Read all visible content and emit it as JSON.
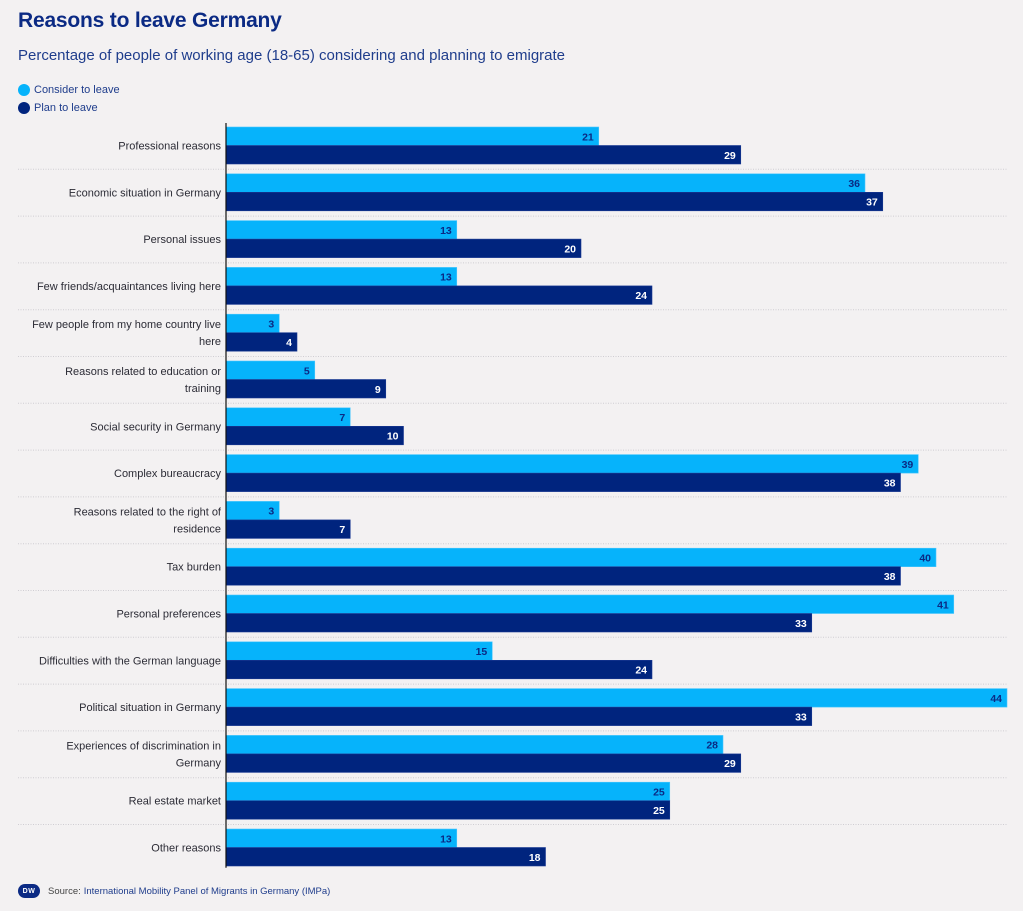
{
  "header": {
    "title": "Reasons to leave Germany",
    "subtitle": "Percentage of people of working age (18-65) considering and planning to emigrate"
  },
  "legend": [
    {
      "label": "Consider to leave",
      "color": "#06b3fb"
    },
    {
      "label": "Plan to leave",
      "color": "#00247e"
    }
  ],
  "footer": {
    "logo": "DW",
    "source_prefix": "Source:",
    "source_text": "International Mobility Panel of Migrants in Germany (IMPa)"
  },
  "chart_data": {
    "type": "bar",
    "orientation": "horizontal",
    "title": "Reasons to leave Germany",
    "subtitle": "Percentage of people of working age (18-65) considering and planning to emigrate",
    "xlabel": "",
    "ylabel": "",
    "xlim": [
      0,
      44
    ],
    "grid": false,
    "legend_position": "top-left",
    "categories": [
      [
        "Professional reasons"
      ],
      [
        "Economic situation in Germany"
      ],
      [
        "Personal issues"
      ],
      [
        "Few friends/acquaintances living here"
      ],
      [
        "Few people from my home country live",
        "here"
      ],
      [
        "Reasons related to education or",
        "training"
      ],
      [
        "Social security in Germany"
      ],
      [
        "Complex bureaucracy"
      ],
      [
        "Reasons related to the right of",
        "residence"
      ],
      [
        "Tax burden"
      ],
      [
        "Personal preferences"
      ],
      [
        "Difficulties with the German language"
      ],
      [
        "Political situation in Germany"
      ],
      [
        "Experiences of discrimination in",
        "Germany"
      ],
      [
        "Real estate market"
      ],
      [
        "Other reasons"
      ]
    ],
    "series": [
      {
        "name": "Consider to leave",
        "color": "#06b3fb",
        "label_color": "#0b2a84",
        "values": [
          21,
          36,
          13,
          13,
          3,
          5,
          7,
          39,
          3,
          40,
          41,
          15,
          44,
          28,
          25,
          13
        ]
      },
      {
        "name": "Plan to leave",
        "color": "#00247e",
        "label_color": "#ffffff",
        "values": [
          29,
          37,
          20,
          24,
          4,
          9,
          10,
          38,
          7,
          38,
          33,
          24,
          33,
          29,
          25,
          18
        ]
      }
    ]
  }
}
